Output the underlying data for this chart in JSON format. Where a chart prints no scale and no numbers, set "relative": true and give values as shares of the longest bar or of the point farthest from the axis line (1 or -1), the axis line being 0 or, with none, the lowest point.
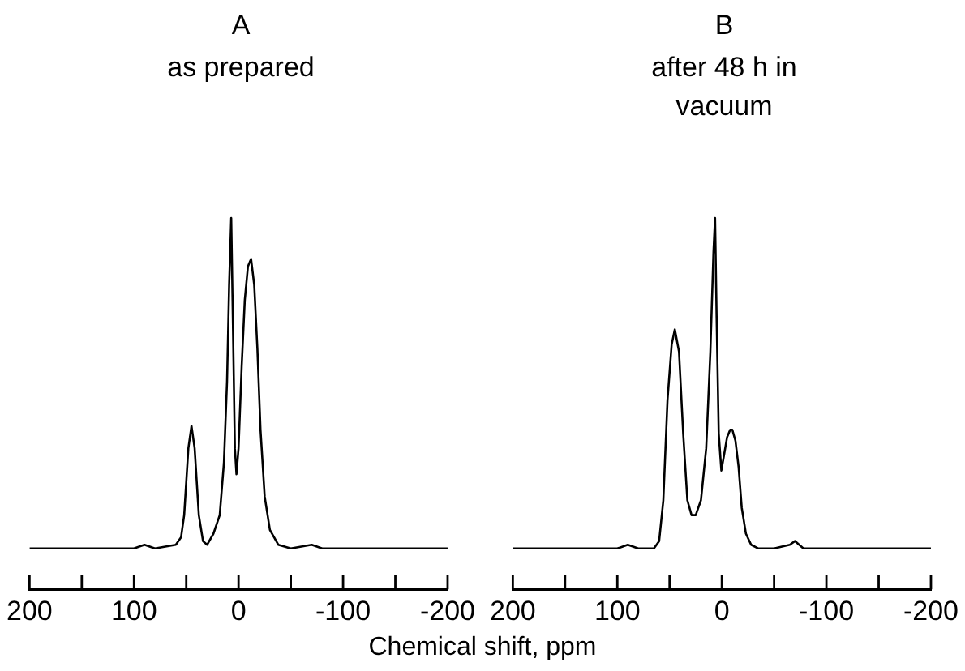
{
  "chart_data": [
    {
      "type": "line",
      "title": "A",
      "subtitle": "as prepared",
      "xlabel": "Chemical shift, ppm",
      "relative": true,
      "tick_labels": "x",
      "xlim": [
        200,
        -200
      ],
      "xticks": [
        200,
        {
          "value": 150,
          "label": null
        },
        100,
        {
          "value": 50,
          "label": null
        },
        0,
        {
          "value": -50,
          "label": null
        },
        -100,
        {
          "value": -150,
          "label": null
        },
        -200
      ],
      "marker": "none",
      "line_style": "solid",
      "series": [
        {
          "color": "#000000",
          "x": [
            200,
            150,
            100,
            90,
            80,
            60,
            55,
            52,
            48,
            45,
            42,
            38,
            34,
            30,
            24,
            18,
            14,
            11,
            9,
            7,
            5,
            3.5,
            2,
            0,
            -3,
            -6,
            -9,
            -12,
            -15,
            -18,
            -21,
            -25,
            -30,
            -38,
            -50,
            -70,
            -80,
            -100,
            -150,
            -200
          ],
          "values": [
            0.11,
            0.11,
            0.11,
            0.12,
            0.11,
            0.12,
            0.14,
            0.2,
            0.38,
            0.44,
            0.38,
            0.2,
            0.13,
            0.12,
            0.15,
            0.2,
            0.34,
            0.56,
            0.82,
            1,
            0.65,
            0.38,
            0.31,
            0.38,
            0.6,
            0.78,
            0.87,
            0.89,
            0.82,
            0.65,
            0.43,
            0.25,
            0.16,
            0.12,
            0.11,
            0.12,
            0.11,
            0.11,
            0.11,
            0.11
          ]
        }
      ]
    },
    {
      "type": "line",
      "title": "B",
      "subtitle": "after 48 h in vacuum",
      "relative": true,
      "tick_labels": "x",
      "xlim": [
        200,
        -200
      ],
      "xticks": [
        200,
        {
          "value": 150,
          "label": null
        },
        100,
        {
          "value": 50,
          "label": null
        },
        0,
        {
          "value": -50,
          "label": null
        },
        -100,
        {
          "value": -150,
          "label": null
        },
        -200
      ],
      "marker": "none",
      "line_style": "solid",
      "series": [
        {
          "color": "#000000",
          "x": [
            200,
            150,
            100,
            90,
            80,
            65,
            60,
            56,
            52,
            48,
            45,
            41,
            37,
            33,
            29,
            25,
            20,
            15,
            11,
            8,
            6.5,
            5,
            3,
            0.5,
            -2,
            -5,
            -8,
            -10,
            -13,
            -16,
            -19,
            -23,
            -28,
            -35,
            -50,
            -65,
            -70,
            -78,
            -100,
            -150,
            -200
          ],
          "values": [
            0.11,
            0.11,
            0.11,
            0.12,
            0.11,
            0.11,
            0.13,
            0.24,
            0.51,
            0.66,
            0.7,
            0.64,
            0.42,
            0.24,
            0.2,
            0.2,
            0.24,
            0.38,
            0.64,
            0.91,
            1,
            0.73,
            0.42,
            0.32,
            0.36,
            0.41,
            0.43,
            0.43,
            0.4,
            0.33,
            0.22,
            0.15,
            0.12,
            0.11,
            0.11,
            0.12,
            0.13,
            0.11,
            0.11,
            0.11,
            0.11
          ]
        }
      ]
    }
  ]
}
